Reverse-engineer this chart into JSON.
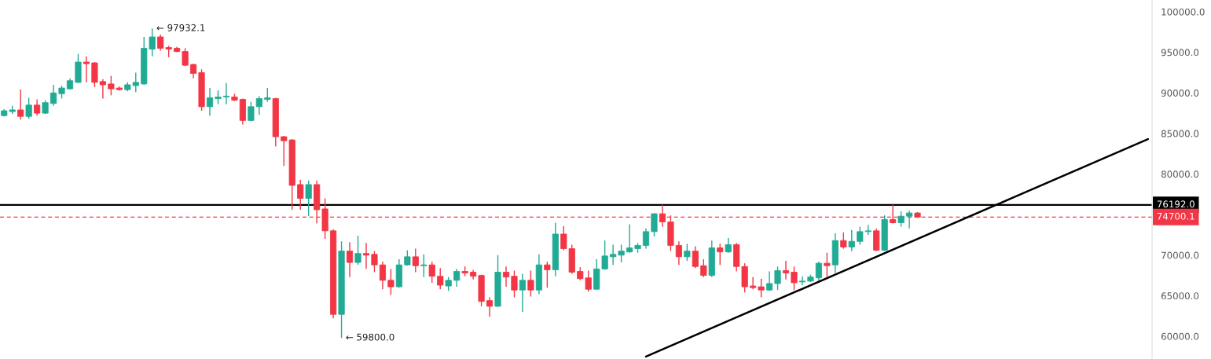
{
  "chart_data": {
    "type": "candlestick",
    "categories": [
      null,
      null,
      null,
      null,
      null,
      null,
      null,
      null,
      null,
      null,
      null,
      null,
      null,
      null,
      null,
      null,
      null,
      null,
      null,
      null,
      null,
      null,
      null,
      null,
      null,
      null,
      null,
      null,
      null,
      null,
      null,
      null,
      null,
      null,
      null,
      null,
      null,
      null,
      null,
      null,
      null,
      null,
      null,
      null,
      null,
      null,
      null,
      null,
      null,
      null,
      null,
      null,
      null,
      null,
      null,
      null,
      null,
      null,
      null,
      null,
      null,
      null,
      null,
      null,
      null,
      null,
      null,
      null,
      null,
      null,
      null,
      null,
      null,
      null,
      null,
      null,
      null,
      null,
      null,
      null,
      null,
      null,
      null,
      null,
      null,
      null,
      null,
      null,
      null,
      null,
      null,
      null,
      null,
      null,
      null,
      null,
      null,
      null,
      null,
      null,
      null,
      null,
      null,
      null,
      null,
      null,
      null,
      null,
      null,
      null,
      null,
      null,
      null,
      null,
      null,
      null,
      null,
      null,
      null,
      null,
      null,
      null,
      null,
      null,
      null,
      null,
      null,
      null,
      null,
      null,
      null,
      null,
      null,
      null,
      null,
      null,
      null,
      null,
      null,
      null
    ],
    "ohlc": [
      [
        87200,
        88000,
        87100,
        87800
      ],
      [
        87700,
        88400,
        87400,
        87900
      ],
      [
        87900,
        90400,
        86700,
        87100
      ],
      [
        87100,
        89400,
        86800,
        88500
      ],
      [
        88500,
        89200,
        87200,
        87500
      ],
      [
        87500,
        89100,
        87400,
        88800
      ],
      [
        88700,
        91000,
        88400,
        90000
      ],
      [
        89900,
        90900,
        89300,
        90600
      ],
      [
        90500,
        91800,
        90400,
        91500
      ],
      [
        91300,
        94800,
        91200,
        93800
      ],
      [
        93800,
        94500,
        91300,
        93600
      ],
      [
        93700,
        93800,
        90700,
        91300
      ],
      [
        91400,
        91700,
        89300,
        91000
      ],
      [
        91100,
        92100,
        89700,
        90500
      ],
      [
        90600,
        90800,
        90300,
        90400
      ],
      [
        90400,
        91300,
        90200,
        91000
      ],
      [
        90900,
        92500,
        90100,
        91300
      ],
      [
        91100,
        96900,
        91000,
        95500
      ],
      [
        95400,
        97932.1,
        94500,
        96900
      ],
      [
        96900,
        97200,
        95200,
        95500
      ],
      [
        95600,
        95800,
        94400,
        95400
      ],
      [
        95500,
        95700,
        95000,
        95100
      ],
      [
        95100,
        95500,
        93300,
        93400
      ],
      [
        93500,
        93600,
        91800,
        92400
      ],
      [
        92500,
        92900,
        87800,
        88300
      ],
      [
        88300,
        90600,
        87200,
        89400
      ],
      [
        89300,
        90300,
        88600,
        89500
      ],
      [
        89500,
        91200,
        88600,
        89600
      ],
      [
        89500,
        89900,
        89000,
        89100
      ],
      [
        89200,
        89300,
        86100,
        86600
      ],
      [
        86600,
        88900,
        86500,
        88300
      ],
      [
        88300,
        89600,
        87300,
        89300
      ],
      [
        89200,
        90600,
        88900,
        89400
      ],
      [
        89300,
        89400,
        83400,
        84600
      ],
      [
        84600,
        84700,
        81000,
        84100
      ],
      [
        84200,
        84300,
        75600,
        78600
      ],
      [
        78700,
        79300,
        75600,
        77000
      ],
      [
        77000,
        79200,
        74800,
        78700
      ],
      [
        78700,
        79200,
        73900,
        75600
      ],
      [
        75700,
        77000,
        72000,
        73000
      ],
      [
        73000,
        73200,
        62200,
        62700
      ],
      [
        62700,
        71700,
        59800,
        70500
      ],
      [
        70500,
        71600,
        67300,
        69100
      ],
      [
        69100,
        72400,
        68800,
        70200
      ],
      [
        70200,
        71500,
        68300,
        70000
      ],
      [
        70100,
        70500,
        67900,
        68800
      ],
      [
        68800,
        69200,
        65800,
        66900
      ],
      [
        66900,
        68300,
        65100,
        66100
      ],
      [
        66100,
        69500,
        66000,
        68800
      ],
      [
        68800,
        70600,
        68700,
        69800
      ],
      [
        69800,
        70800,
        67900,
        68700
      ],
      [
        68700,
        70100,
        67300,
        68800
      ],
      [
        68800,
        69200,
        66600,
        67400
      ],
      [
        67400,
        68400,
        65800,
        66300
      ],
      [
        66200,
        67300,
        65600,
        66900
      ],
      [
        66900,
        68300,
        66100,
        68000
      ],
      [
        68000,
        68600,
        67400,
        67800
      ],
      [
        67900,
        68200,
        67000,
        67400
      ],
      [
        67500,
        67600,
        63700,
        64300
      ],
      [
        64400,
        64800,
        62400,
        63700
      ],
      [
        63700,
        70000,
        63600,
        67900
      ],
      [
        67900,
        68600,
        66100,
        67300
      ],
      [
        67400,
        68100,
        64800,
        65700
      ],
      [
        65700,
        67700,
        63000,
        66900
      ],
      [
        66900,
        68100,
        64900,
        65700
      ],
      [
        65700,
        70100,
        65200,
        68800
      ],
      [
        68800,
        69200,
        66000,
        68200
      ],
      [
        68200,
        74000,
        67400,
        72600
      ],
      [
        72600,
        73600,
        70600,
        70800
      ],
      [
        70800,
        71300,
        67700,
        67900
      ],
      [
        68000,
        68500,
        66900,
        67100
      ],
      [
        67200,
        68100,
        65500,
        65800
      ],
      [
        65800,
        69500,
        65700,
        68300
      ],
      [
        68300,
        71800,
        68200,
        69900
      ],
      [
        69800,
        71300,
        68800,
        70100
      ],
      [
        70000,
        71300,
        69100,
        70500
      ],
      [
        70400,
        73800,
        70300,
        70900
      ],
      [
        70800,
        71500,
        70300,
        71200
      ],
      [
        71200,
        73300,
        70800,
        72900
      ],
      [
        72900,
        75200,
        72300,
        75100
      ],
      [
        75100,
        76200,
        73500,
        74100
      ],
      [
        74100,
        74900,
        70500,
        71200
      ],
      [
        71200,
        71700,
        68800,
        69800
      ],
      [
        69800,
        71400,
        69300,
        70500
      ],
      [
        70500,
        71100,
        68400,
        68600
      ],
      [
        68700,
        69500,
        67300,
        67500
      ],
      [
        67500,
        71800,
        67300,
        70900
      ],
      [
        70900,
        71400,
        68800,
        70400
      ],
      [
        70400,
        72100,
        70300,
        71300
      ],
      [
        71300,
        71500,
        68000,
        68600
      ],
      [
        68600,
        69000,
        65400,
        66100
      ],
      [
        66200,
        67300,
        65800,
        66000
      ],
      [
        66100,
        67100,
        64800,
        65700
      ],
      [
        65700,
        68000,
        65600,
        66500
      ],
      [
        66500,
        68600,
        65700,
        68100
      ],
      [
        68100,
        69300,
        67000,
        67800
      ],
      [
        67900,
        68600,
        65700,
        66600
      ],
      [
        66700,
        67400,
        66300,
        66800
      ],
      [
        66800,
        67600,
        66700,
        67300
      ],
      [
        67200,
        69200,
        66600,
        69000
      ],
      [
        69000,
        70300,
        67300,
        68700
      ],
      [
        68800,
        72700,
        67800,
        71800
      ],
      [
        71800,
        72800,
        70800,
        71000
      ],
      [
        71000,
        73100,
        70500,
        71700
      ],
      [
        71700,
        73500,
        71300,
        72900
      ],
      [
        72900,
        73700,
        72500,
        73000
      ],
      [
        73000,
        73300,
        70500,
        70600
      ],
      [
        70600,
        74900,
        70500,
        74400
      ],
      [
        74400,
        76200,
        73900,
        74000
      ],
      [
        74000,
        75400,
        73500,
        74800
      ],
      [
        74800,
        75500,
        73300,
        75200
      ],
      [
        75200,
        75300,
        74600,
        74700.1
      ],
      null,
      null,
      null,
      null,
      null,
      null,
      null,
      null,
      null,
      null,
      null,
      null,
      null,
      null,
      null,
      null,
      null,
      null,
      null,
      null,
      null,
      null,
      null,
      null,
      null,
      null,
      null,
      null
    ],
    "colors": [
      "#22ab94",
      "#22ab94",
      "#f23645",
      "#22ab94",
      "#f23645",
      "#22ab94",
      "#22ab94",
      "#22ab94",
      "#22ab94",
      "#22ab94",
      "#f23645",
      "#f23645",
      "#f23645",
      "#f23645",
      "#f23645",
      "#22ab94",
      "#22ab94",
      "#22ab94",
      "#22ab94",
      "#f23645",
      "#f23645",
      "#f23645",
      "#f23645",
      "#f23645",
      "#f23645",
      "#22ab94",
      "#22ab94",
      "#22ab94",
      "#f23645",
      "#f23645",
      "#22ab94",
      "#22ab94",
      "#22ab94",
      "#f23645",
      "#f23645",
      "#f23645",
      "#f23645",
      "#22ab94",
      "#f23645",
      "#f23645",
      "#f23645",
      "#22ab94",
      "#f23645",
      "#22ab94",
      "#f23645",
      "#f23645",
      "#f23645",
      "#f23645",
      "#22ab94",
      "#22ab94",
      "#f23645",
      "#22ab94",
      "#f23645",
      "#f23645",
      "#22ab94",
      "#22ab94",
      "#f23645",
      "#f23645",
      "#f23645",
      "#f23645",
      "#22ab94",
      "#f23645",
      "#f23645",
      "#22ab94",
      "#f23645",
      "#22ab94",
      "#f23645",
      "#22ab94",
      "#f23645",
      "#f23645",
      "#f23645",
      "#f23645",
      "#22ab94",
      "#22ab94",
      "#22ab94",
      "#22ab94",
      "#22ab94",
      "#22ab94",
      "#22ab94",
      "#22ab94",
      "#f23645",
      "#f23645",
      "#f23645",
      "#22ab94",
      "#f23645",
      "#f23645",
      "#22ab94",
      "#f23645",
      "#22ab94",
      "#f23645",
      "#f23645",
      "#f23645",
      "#f23645",
      "#22ab94",
      "#22ab94",
      "#f23645",
      "#f23645",
      "#22ab94",
      "#22ab94",
      "#22ab94",
      "#f23645",
      "#22ab94",
      "#f23645",
      "#22ab94",
      "#22ab94",
      "#22ab94",
      "#f23645",
      "#22ab94",
      "#f23645",
      "#22ab94",
      "#22ab94",
      "#f23645",
      null,
      null,
      null,
      null,
      null,
      null,
      null,
      null,
      null,
      null,
      null,
      null,
      null,
      null,
      null,
      null,
      null,
      null,
      null,
      null,
      null,
      null,
      null,
      null,
      null,
      null,
      null,
      null
    ],
    "series": [
      {
        "type": "line",
        "color": "#000000",
        "values": [
          null,
          null,
          null,
          null,
          null,
          null,
          null,
          null,
          null,
          null,
          null,
          null,
          null,
          null,
          null,
          null,
          null,
          null,
          null,
          null,
          null,
          null,
          null,
          null,
          null,
          null,
          null,
          null,
          null,
          null,
          null,
          null,
          null,
          null,
          null,
          null,
          null,
          null,
          null,
          null,
          null,
          null,
          null,
          null,
          null,
          null,
          null,
          null,
          null,
          null,
          null,
          null,
          null,
          null,
          null,
          null,
          null,
          null,
          null,
          null,
          null,
          null,
          null,
          null,
          null,
          null,
          null,
          null,
          null,
          null,
          null,
          null,
          null,
          null,
          null,
          null,
          null,
          null,
          57500,
          null,
          null,
          null,
          null,
          null,
          null,
          null,
          null,
          null,
          null,
          null,
          null,
          null,
          null,
          null,
          null,
          null,
          null,
          null,
          null,
          null,
          null,
          null,
          null,
          null,
          null,
          null,
          null,
          null,
          null,
          null,
          null,
          null,
          null,
          null,
          null,
          null,
          null,
          null,
          null,
          null,
          null,
          null,
          null,
          null,
          null,
          null,
          null,
          null,
          null,
          null,
          null,
          null,
          null,
          null,
          null,
          null,
          null,
          null,
          null,
          84300
        ]
      }
    ],
    "ylim": [
      57200,
      101450
    ],
    "yticks": [
      {
        "value": 60000,
        "label": "60000.0"
      },
      {
        "value": 65000,
        "label": "65000.0"
      },
      {
        "value": 70000,
        "label": "70000.0"
      },
      {
        "value": 80000,
        "label": "80000.0"
      },
      {
        "value": 85000,
        "label": "85000.0"
      },
      {
        "value": 90000,
        "label": "90000.0"
      },
      {
        "value": 95000,
        "label": "95000.0"
      },
      {
        "value": 100000,
        "label": "100000.0"
      }
    ],
    "ref_lines": [
      {
        "axis": "y",
        "value": 76192,
        "label": "76192.0",
        "color": "#000000",
        "line_style": "solid"
      },
      {
        "axis": "y",
        "value": 74700.1,
        "label": "74700.1",
        "color": "#f23645",
        "line_style": "dashed"
      }
    ],
    "annotations": [
      "← 97932.1",
      "← 59800.0"
    ],
    "tick_labels": "y",
    "grid": false
  }
}
